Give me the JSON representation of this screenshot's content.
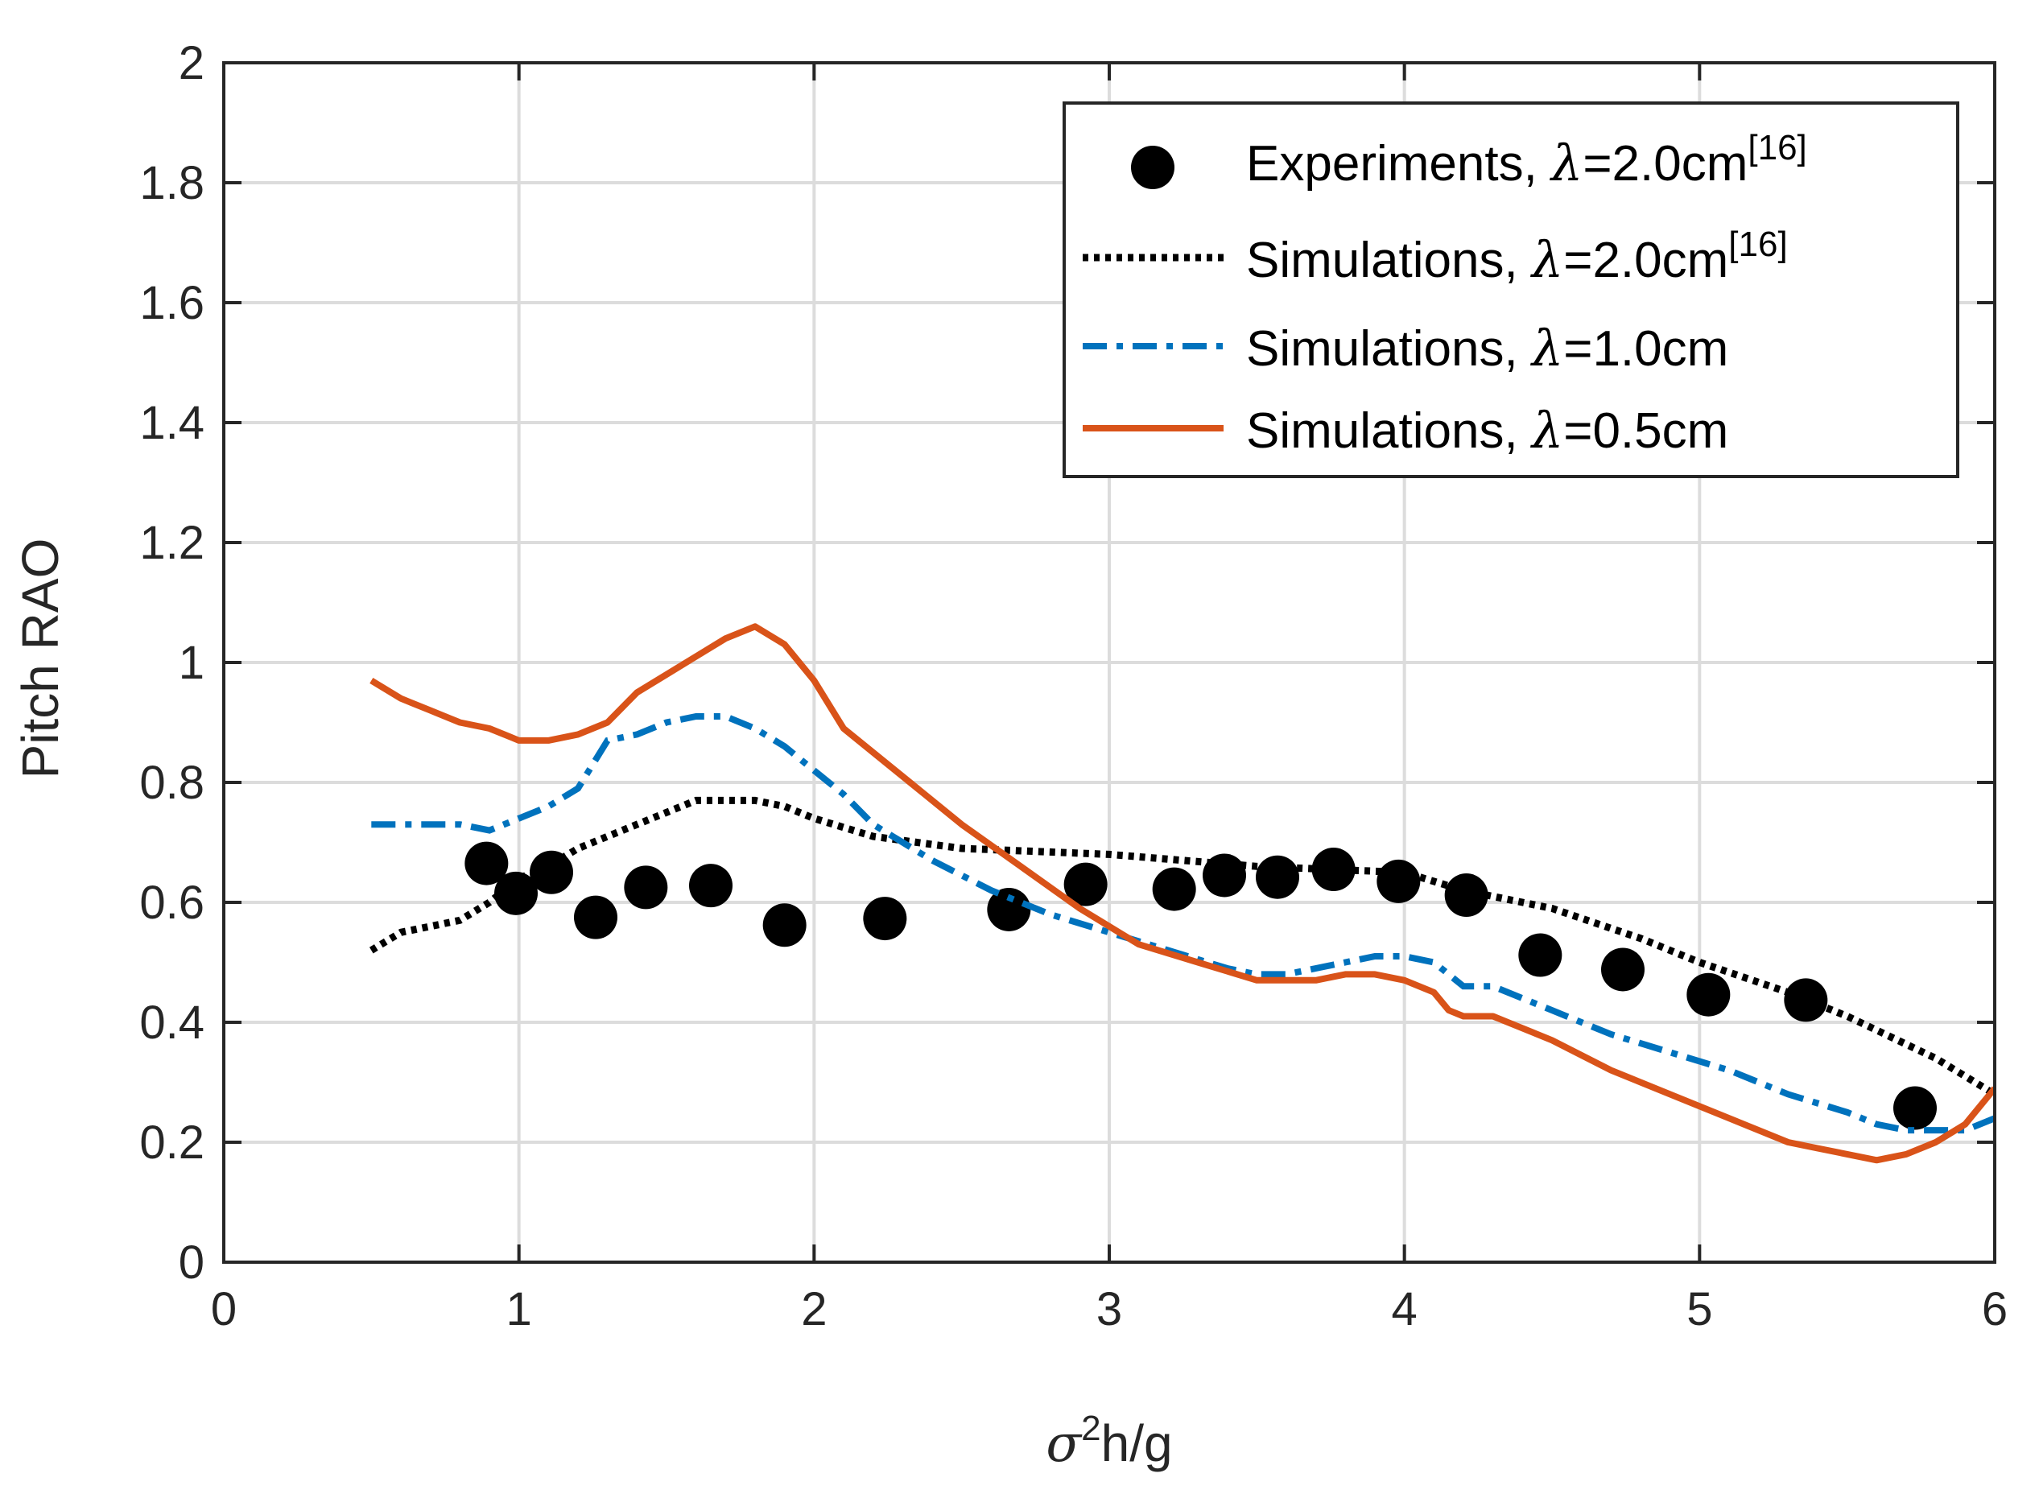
{
  "chart_data": {
    "type": "line",
    "title": "",
    "xlabel": {
      "sigma": "σ",
      "sup": "2",
      "rest": "h/g"
    },
    "ylabel": "Pitch RAO",
    "xlim": [
      0,
      6
    ],
    "ylim": [
      0,
      2
    ],
    "grid": true,
    "legend_position": "top-right",
    "xticks": [
      "0",
      "1",
      "2",
      "3",
      "4",
      "5",
      "6"
    ],
    "yticks": [
      "0",
      "0.2",
      "0.4",
      "0.6",
      "0.8",
      "1",
      "1.2",
      "1.4",
      "1.6",
      "1.8",
      "2"
    ],
    "series": [
      {
        "name": "Experiments",
        "legend": {
          "prefix": "Experiments, ",
          "lambda": "λ",
          "suffix": "=2.0cm",
          "sup": "[16]"
        },
        "style": "markers",
        "color": "#000000",
        "x": [
          0.89,
          0.99,
          1.11,
          1.26,
          1.43,
          1.65,
          1.9,
          2.24,
          2.66,
          2.92,
          3.22,
          3.39,
          3.57,
          3.76,
          3.98,
          4.21,
          4.46,
          4.74,
          5.03,
          5.36,
          5.73
        ],
        "y": [
          0.665,
          0.615,
          0.65,
          0.575,
          0.625,
          0.628,
          0.562,
          0.573,
          0.588,
          0.63,
          0.622,
          0.645,
          0.642,
          0.655,
          0.635,
          0.612,
          0.512,
          0.488,
          0.446,
          0.437,
          0.257
        ]
      },
      {
        "name": "Simulations λ=2.0cm",
        "legend": {
          "prefix": "Simulations,  ",
          "lambda": "λ",
          "suffix": "=2.0cm",
          "sup": "[16]"
        },
        "style": "dotted",
        "color": "#000000",
        "x": [
          0.5,
          0.6,
          0.7,
          0.8,
          0.9,
          1.0,
          1.1,
          1.2,
          1.3,
          1.4,
          1.5,
          1.6,
          1.7,
          1.8,
          1.9,
          2.0,
          2.2,
          2.5,
          3.0,
          3.5,
          4.0,
          4.2,
          4.5,
          4.8,
          5.0,
          5.3,
          5.5,
          5.8,
          6.0
        ],
        "y": [
          0.52,
          0.55,
          0.56,
          0.57,
          0.6,
          0.64,
          0.66,
          0.69,
          0.71,
          0.73,
          0.75,
          0.77,
          0.77,
          0.77,
          0.76,
          0.74,
          0.71,
          0.69,
          0.68,
          0.66,
          0.65,
          0.62,
          0.59,
          0.54,
          0.5,
          0.45,
          0.41,
          0.34,
          0.28
        ]
      },
      {
        "name": "Simulations λ=1.0cm",
        "legend": {
          "prefix": "Simulations, ",
          "lambda": "λ",
          "suffix": "=1.0cm",
          "sup": ""
        },
        "style": "dashdot",
        "color": "#0072BD",
        "x": [
          0.5,
          0.6,
          0.7,
          0.8,
          0.9,
          1.0,
          1.1,
          1.2,
          1.3,
          1.4,
          1.5,
          1.6,
          1.7,
          1.8,
          1.9,
          2.0,
          2.1,
          2.2,
          2.4,
          2.6,
          2.8,
          3.0,
          3.2,
          3.4,
          3.5,
          3.6,
          3.7,
          3.8,
          3.9,
          4.0,
          4.1,
          4.2,
          4.3,
          4.5,
          4.7,
          4.9,
          5.1,
          5.3,
          5.5,
          5.6,
          5.7,
          5.8,
          5.9,
          6.0
        ],
        "y": [
          0.73,
          0.73,
          0.73,
          0.73,
          0.72,
          0.74,
          0.76,
          0.79,
          0.87,
          0.88,
          0.9,
          0.91,
          0.91,
          0.89,
          0.86,
          0.82,
          0.78,
          0.73,
          0.67,
          0.62,
          0.58,
          0.55,
          0.52,
          0.49,
          0.48,
          0.48,
          0.49,
          0.5,
          0.51,
          0.51,
          0.5,
          0.46,
          0.46,
          0.42,
          0.38,
          0.35,
          0.32,
          0.28,
          0.25,
          0.23,
          0.22,
          0.22,
          0.22,
          0.24
        ]
      },
      {
        "name": "Simulations λ=0.5cm",
        "legend": {
          "prefix": "Simulations, ",
          "lambda": "λ",
          "suffix": "=0.5cm",
          "sup": ""
        },
        "style": "solid",
        "color": "#D95319",
        "x": [
          0.5,
          0.6,
          0.7,
          0.8,
          0.9,
          1.0,
          1.1,
          1.2,
          1.3,
          1.4,
          1.5,
          1.6,
          1.7,
          1.8,
          1.9,
          2.0,
          2.1,
          2.3,
          2.5,
          2.7,
          2.9,
          3.1,
          3.3,
          3.5,
          3.6,
          3.7,
          3.8,
          3.9,
          4.0,
          4.1,
          4.15,
          4.2,
          4.3,
          4.5,
          4.7,
          4.9,
          5.1,
          5.3,
          5.4,
          5.5,
          5.6,
          5.7,
          5.8,
          5.9,
          6.0
        ],
        "y": [
          0.97,
          0.94,
          0.92,
          0.9,
          0.89,
          0.87,
          0.87,
          0.88,
          0.9,
          0.95,
          0.98,
          1.01,
          1.04,
          1.06,
          1.03,
          0.97,
          0.89,
          0.81,
          0.73,
          0.66,
          0.59,
          0.53,
          0.5,
          0.47,
          0.47,
          0.47,
          0.48,
          0.48,
          0.47,
          0.45,
          0.42,
          0.41,
          0.41,
          0.37,
          0.32,
          0.28,
          0.24,
          0.2,
          0.19,
          0.18,
          0.17,
          0.18,
          0.2,
          0.23,
          0.29
        ]
      }
    ]
  }
}
